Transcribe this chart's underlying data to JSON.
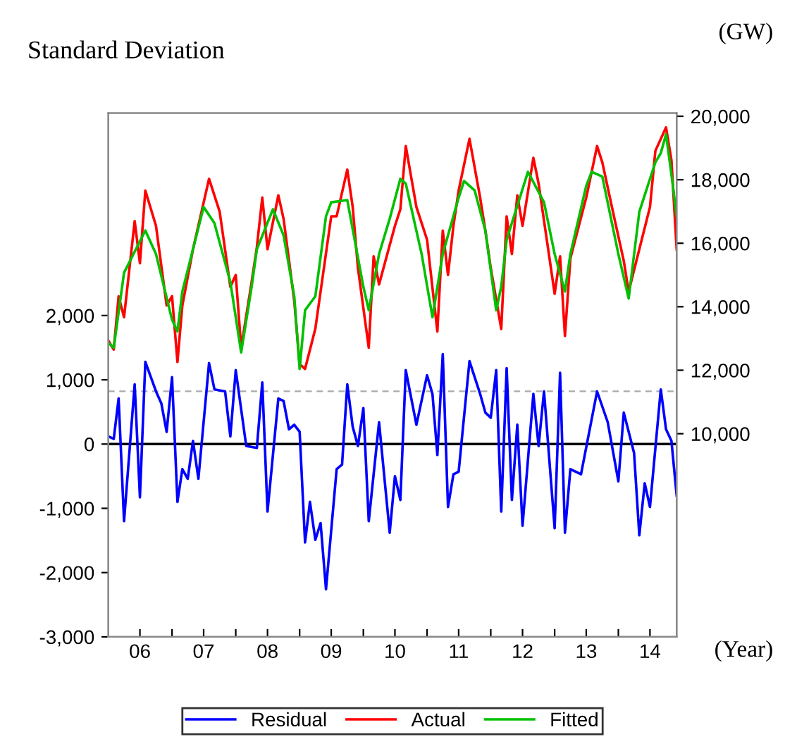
{
  "chart_data": {
    "type": "line",
    "title": "Standard Deviation",
    "xlabel": "(Year)",
    "y2label": "(GW)",
    "xlim": [
      "2006-01",
      "2014-12"
    ],
    "xticks": [
      {
        "value": "2006-07",
        "label": "06"
      },
      {
        "value": "2007-01",
        "label": null
      },
      {
        "value": "2007-07",
        "label": "07"
      },
      {
        "value": "2008-01",
        "label": null
      },
      {
        "value": "2008-07",
        "label": "08"
      },
      {
        "value": "2009-01",
        "label": null
      },
      {
        "value": "2009-07",
        "label": "09"
      },
      {
        "value": "2010-01",
        "label": null
      },
      {
        "value": "2010-07",
        "label": "10"
      },
      {
        "value": "2011-01",
        "label": null
      },
      {
        "value": "2011-07",
        "label": "11"
      },
      {
        "value": "2012-01",
        "label": null
      },
      {
        "value": "2012-07",
        "label": "12"
      },
      {
        "value": "2013-01",
        "label": null
      },
      {
        "value": "2013-07",
        "label": "13"
      },
      {
        "value": "2014-01",
        "label": null
      },
      {
        "value": "2014-07",
        "label": "14"
      }
    ],
    "ylim": [
      -3000,
      5150
    ],
    "yticks": [
      {
        "value": -3000,
        "label": "-3,000"
      },
      {
        "value": -2000,
        "label": "-2,000"
      },
      {
        "value": -1000,
        "label": "-1,000"
      },
      0,
      {
        "value": 1000,
        "label": "1,000"
      },
      {
        "value": 2000,
        "label": "2,000"
      }
    ],
    "y2lim": [
      3600,
      20100
    ],
    "y2ticks": [
      {
        "value": 10000,
        "label": "10,000"
      },
      {
        "value": 12000,
        "label": "12,000"
      },
      {
        "value": 14000,
        "label": "14,000"
      },
      {
        "value": 16000,
        "label": "16,000"
      },
      {
        "value": 18000,
        "label": "18,000"
      },
      {
        "value": 20000,
        "label": "20,000"
      }
    ],
    "grid": false,
    "legend": "bottom",
    "marker": "none",
    "line_style": "solid",
    "ref_lines": [
      {
        "axis": "y",
        "value": 0,
        "color": "#000000",
        "line_style": "solid"
      },
      {
        "axis": "y",
        "value": 820,
        "color": "#aaaaaa",
        "line_style": "dashed"
      }
    ],
    "series": [
      {
        "name": "Residual",
        "color": "#0000ff",
        "axis": "y",
        "x": [
          "2006-01",
          "2006-02",
          "2006-03",
          "2006-04",
          "2006-06",
          "2006-07",
          "2006-08",
          "2006-10",
          "2006-11",
          "2006-12",
          "2007-01",
          "2007-02",
          "2007-03",
          "2007-04",
          "2007-05",
          "2007-06",
          "2007-08",
          "2007-09",
          "2007-11",
          "2007-12",
          "2008-01",
          "2008-03",
          "2008-05",
          "2008-06",
          "2008-07",
          "2008-09",
          "2008-10",
          "2008-11",
          "2008-12",
          "2009-01",
          "2009-02",
          "2009-03",
          "2009-04",
          "2009-05",
          "2009-06",
          "2009-08",
          "2009-09",
          "2009-10",
          "2009-11",
          "2009-12",
          "2010-01",
          "2010-02",
          "2010-04",
          "2010-06",
          "2010-07",
          "2010-08",
          "2010-09",
          "2010-11",
          "2011-01",
          "2011-02",
          "2011-03",
          "2011-04",
          "2011-05",
          "2011-06",
          "2011-07",
          "2011-09",
          "2011-11",
          "2011-12",
          "2012-01",
          "2012-02",
          "2012-03",
          "2012-04",
          "2012-05",
          "2012-06",
          "2012-07",
          "2012-09",
          "2012-10",
          "2012-11",
          "2013-01",
          "2013-02",
          "2013-03",
          "2013-04",
          "2013-06",
          "2013-09",
          "2013-11",
          "2014-01",
          "2014-02",
          "2014-04",
          "2014-05",
          "2014-06",
          "2014-07",
          "2014-09",
          "2014-10",
          "2014-11",
          "2014-12"
        ],
        "values": [
          120,
          80,
          710,
          -1200,
          930,
          -830,
          1280,
          820,
          630,
          190,
          1040,
          -900,
          -390,
          -540,
          50,
          -540,
          1260,
          850,
          820,
          120,
          1150,
          -30,
          -60,
          960,
          -1050,
          710,
          670,
          230,
          300,
          190,
          -1530,
          -900,
          -1490,
          -1230,
          -2260,
          -390,
          -320,
          930,
          270,
          -30,
          560,
          -1200,
          340,
          -1380,
          -500,
          -870,
          1150,
          300,
          1070,
          780,
          -170,
          1400,
          -980,
          -470,
          -430,
          1290,
          780,
          490,
          410,
          1150,
          -1050,
          1180,
          -870,
          300,
          -1270,
          780,
          -30,
          820,
          -1310,
          1110,
          -1380,
          -390,
          -470,
          820,
          340,
          -580,
          490,
          -140,
          -1420,
          -610,
          -980,
          850,
          230,
          50,
          -800
        ]
      },
      {
        "name": "Actual",
        "color": "#ff0000",
        "axis": "y2",
        "x": [
          "2006-01",
          "2006-02",
          "2006-03",
          "2006-04",
          "2006-06",
          "2006-07",
          "2006-08",
          "2006-10",
          "2006-12",
          "2007-01",
          "2007-02",
          "2007-03",
          "2007-05",
          "2007-08",
          "2007-10",
          "2007-12",
          "2008-01",
          "2008-02",
          "2008-04",
          "2008-05",
          "2008-06",
          "2008-07",
          "2008-09",
          "2008-10",
          "2008-12",
          "2009-01",
          "2009-02",
          "2009-04",
          "2009-05",
          "2009-07",
          "2009-08",
          "2009-10",
          "2009-11",
          "2009-12",
          "2010-02",
          "2010-03",
          "2010-04",
          "2010-07",
          "2010-08",
          "2010-09",
          "2010-11",
          "2011-01",
          "2011-03",
          "2011-04",
          "2011-05",
          "2011-06",
          "2011-07",
          "2011-09",
          "2011-11",
          "2011-12",
          "2012-01",
          "2012-03",
          "2012-04",
          "2012-05",
          "2012-06",
          "2012-07",
          "2012-09",
          "2012-10",
          "2013-01",
          "2013-02",
          "2013-03",
          "2013-04",
          "2013-07",
          "2013-09",
          "2013-10",
          "2013-12",
          "2014-02",
          "2014-03",
          "2014-05",
          "2014-07",
          "2014-08",
          "2014-10",
          "2014-11",
          "2014-12"
        ],
        "values": [
          12930,
          12650,
          14330,
          13670,
          16700,
          15370,
          17660,
          16550,
          14040,
          14330,
          12260,
          14040,
          15810,
          18030,
          16990,
          14630,
          15000,
          12710,
          14780,
          15880,
          17440,
          15810,
          17510,
          16770,
          14190,
          12190,
          12040,
          13310,
          14480,
          16850,
          16850,
          18320,
          17140,
          15220,
          12710,
          15590,
          14700,
          16550,
          17070,
          19060,
          17140,
          16110,
          13220,
          16400,
          15000,
          16550,
          17660,
          19290,
          17440,
          16400,
          15220,
          13300,
          16850,
          15660,
          17510,
          16550,
          18690,
          17880,
          14410,
          15590,
          13080,
          15520,
          17440,
          19060,
          18550,
          16990,
          15440,
          14480,
          15810,
          17140,
          18910,
          19650,
          18620,
          15810
        ]
      },
      {
        "name": "Fitted",
        "color": "#00c000",
        "axis": "y2",
        "x": [
          "2006-01",
          "2006-02",
          "2006-04",
          "2006-08",
          "2006-10",
          "2007-01",
          "2007-02",
          "2007-03",
          "2007-05",
          "2007-07",
          "2007-09",
          "2007-12",
          "2008-02",
          "2008-04",
          "2008-05",
          "2008-08",
          "2008-10",
          "2008-12",
          "2009-01",
          "2009-02",
          "2009-04",
          "2009-06",
          "2009-07",
          "2009-10",
          "2010-01",
          "2010-02",
          "2010-04",
          "2010-06",
          "2010-08",
          "2010-09",
          "2010-12",
          "2011-02",
          "2011-04",
          "2011-07",
          "2011-08",
          "2011-10",
          "2011-12",
          "2012-02",
          "2012-03",
          "2012-04",
          "2012-08",
          "2012-11",
          "2013-01",
          "2013-03",
          "2013-04",
          "2013-07",
          "2013-08",
          "2013-10",
          "2014-01",
          "2014-03",
          "2014-05",
          "2014-08",
          "2014-09",
          "2014-10",
          "2014-11",
          "2014-12"
        ],
        "values": [
          12860,
          12710,
          15070,
          16400,
          15660,
          13590,
          13220,
          14480,
          15810,
          17140,
          16630,
          14780,
          12560,
          14630,
          15810,
          17070,
          16250,
          14330,
          12040,
          13890,
          14330,
          16850,
          17290,
          17360,
          14630,
          13890,
          15660,
          16770,
          18030,
          17880,
          15660,
          13670,
          15660,
          17440,
          17960,
          17660,
          16400,
          13890,
          14630,
          16110,
          18250,
          17290,
          15660,
          14480,
          15660,
          17810,
          18250,
          18100,
          15660,
          14260,
          16990,
          18550,
          18840,
          19430,
          18170,
          16850
        ]
      }
    ]
  }
}
